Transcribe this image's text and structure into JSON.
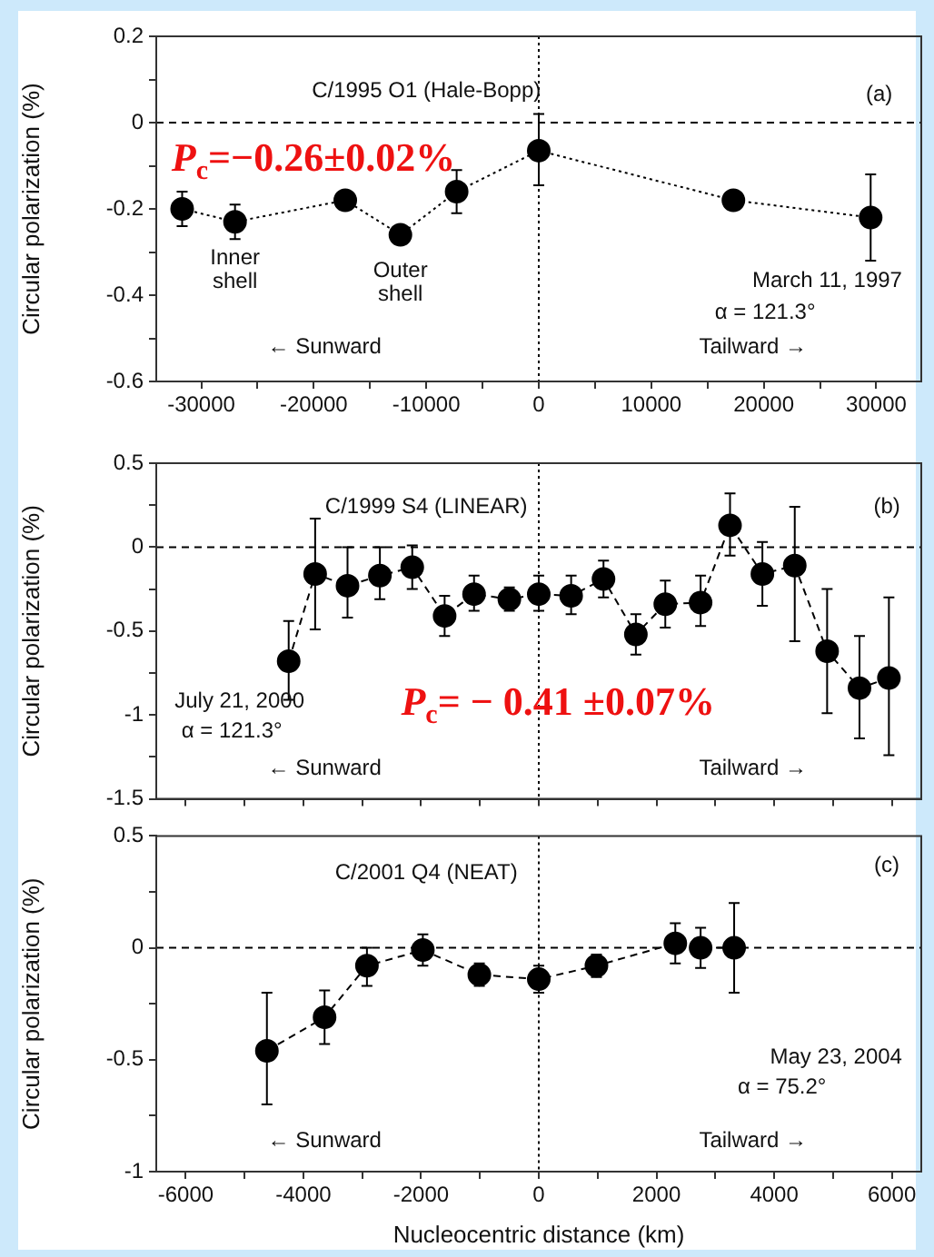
{
  "chart_data": [
    {
      "type": "line",
      "title": "C/1995 O1 (Hale-Bopp)",
      "ylabel": "Circular polarization (%)",
      "x": [
        -31700,
        -27000,
        -17200,
        -12300,
        -7300,
        0,
        17300,
        29500
      ],
      "series": [
        {
          "color": "#000000",
          "values": [
            -0.2,
            -0.23,
            -0.18,
            -0.26,
            -0.16,
            -0.065,
            -0.18,
            -0.22
          ],
          "errors": [
            0.04,
            0.04,
            null,
            null,
            0.05,
            [
              -0.145,
              0.02
            ],
            null,
            0.1
          ]
        }
      ],
      "xlim": [
        -34000,
        34000
      ],
      "xticks": [
        -30000,
        {
          "value": -25000,
          "label": null
        },
        -20000,
        {
          "value": -15000,
          "label": null
        },
        -10000,
        {
          "value": -5000,
          "label": null
        },
        0,
        {
          "value": 5000,
          "label": null
        },
        10000,
        {
          "value": 15000,
          "label": null
        },
        20000,
        {
          "value": 25000,
          "label": null
        },
        30000
      ],
      "ylim": [
        -0.6,
        0.2
      ],
      "yticks": [
        -0.6,
        {
          "value": -0.5,
          "label": null
        },
        -0.4,
        {
          "value": -0.3,
          "label": null
        },
        -0.2,
        {
          "value": -0.1,
          "label": null
        },
        0,
        {
          "value": 0.1,
          "label": null
        },
        0.2
      ],
      "ref_lines": [
        {
          "axis": "y",
          "value": 0,
          "line_style": "dashed"
        },
        {
          "axis": "x",
          "value": 0,
          "line_style": "dotted"
        }
      ],
      "annotations": [
        "(a)",
        "P$_{c}$=−0.26±0.02%",
        {
          "text": "Inner\nshell",
          "x": -27000,
          "y": -0.23
        },
        {
          "text": "Outer\nshell",
          "x": -12300,
          "y": -0.26
        },
        "March 11, 1997",
        "α = 121.3°",
        "← Sunward",
        "Tailward →"
      ],
      "marker": "circle",
      "line_style": "dotted",
      "grid": false
    },
    {
      "type": "line",
      "title": "C/1999 S4 (LINEAR)",
      "ylabel": "Circular polarization (%)",
      "x": [
        -4250,
        -3800,
        -3250,
        -2700,
        -2150,
        -1600,
        -1100,
        -500,
        0,
        550,
        1100,
        1650,
        2150,
        2750,
        3250,
        3800,
        4350,
        4900,
        5450,
        5950
      ],
      "series": [
        {
          "color": "#000000",
          "values": [
            -0.68,
            -0.16,
            -0.23,
            -0.17,
            -0.12,
            -0.41,
            -0.28,
            -0.31,
            -0.28,
            -0.29,
            -0.19,
            -0.52,
            -0.34,
            -0.33,
            0.13,
            -0.16,
            -0.11,
            -0.62,
            -0.84,
            -0.78
          ],
          "errors": [
            [
              -0.91,
              -0.44
            ],
            [
              -0.49,
              0.17
            ],
            [
              -0.42,
              0
            ],
            [
              -0.31,
              0
            ],
            [
              -0.25,
              0.01
            ],
            [
              -0.53,
              -0.29
            ],
            [
              -0.38,
              -0.17
            ],
            [
              -0.38,
              -0.24
            ],
            [
              -0.38,
              -0.17
            ],
            [
              -0.4,
              -0.17
            ],
            [
              -0.3,
              -0.08
            ],
            [
              -0.64,
              -0.4
            ],
            [
              -0.48,
              -0.2
            ],
            [
              -0.47,
              -0.17
            ],
            [
              -0.05,
              0.32
            ],
            [
              -0.35,
              0.03
            ],
            [
              -0.56,
              0.24
            ],
            [
              -0.99,
              -0.25
            ],
            [
              -1.14,
              -0.53
            ],
            [
              -1.24,
              -0.3
            ]
          ]
        }
      ],
      "xlim": [
        -6500,
        6500
      ],
      "xticks": [
        -6000,
        {
          "value": -5000,
          "label": null
        },
        -4000,
        {
          "value": -3000,
          "label": null
        },
        -2000,
        {
          "value": -1000,
          "label": null
        },
        0,
        {
          "value": 1000,
          "label": null
        },
        2000,
        {
          "value": 3000,
          "label": null
        },
        4000,
        {
          "value": 5000,
          "label": null
        },
        6000
      ],
      "ylim": [
        -1.5,
        0.5
      ],
      "yticks": [
        -1.5,
        {
          "value": -1.25,
          "label": null
        },
        -1,
        {
          "value": -0.75,
          "label": null
        },
        -0.5,
        {
          "value": -0.25,
          "label": null
        },
        0,
        {
          "value": 0.25,
          "label": null
        },
        0.5
      ],
      "tick_labels": "y",
      "ref_lines": [
        {
          "axis": "y",
          "value": 0,
          "line_style": "dashed"
        },
        {
          "axis": "x",
          "value": 0,
          "line_style": "dotted"
        }
      ],
      "annotations": [
        "(b)",
        "July 21, 2000",
        "α = 121.3°",
        "P$_{c}$= − 0.41 ±0.07%",
        "← Sunward",
        "Tailward →"
      ],
      "marker": "circle",
      "line_style": "dashed",
      "grid": false
    },
    {
      "type": "line",
      "title": "C/2001 Q4 (NEAT)",
      "xlabel": "Nucleocentric distance (km)",
      "ylabel": "Circular polarization (%)",
      "x": [
        -4620,
        -3640,
        -2920,
        -1970,
        -1010,
        0,
        980,
        2320,
        2750,
        3320
      ],
      "series": [
        {
          "color": "#000000",
          "values": [
            -0.46,
            -0.31,
            -0.08,
            -0.01,
            -0.12,
            -0.14,
            -0.08,
            0.02,
            0,
            0
          ],
          "errors": [
            [
              -0.7,
              -0.2
            ],
            [
              -0.43,
              -0.19
            ],
            [
              -0.17,
              0
            ],
            0.07,
            0.05,
            0.06,
            0.05,
            0.09,
            0.09,
            0.2
          ]
        }
      ],
      "xlim": [
        -6500,
        6500
      ],
      "xticks": [
        -6000,
        {
          "value": -5000,
          "label": null
        },
        -4000,
        {
          "value": -3000,
          "label": null
        },
        -2000,
        {
          "value": -1000,
          "label": null
        },
        0,
        {
          "value": 1000,
          "label": null
        },
        2000,
        {
          "value": 3000,
          "label": null
        },
        4000,
        {
          "value": 5000,
          "label": null
        },
        6000
      ],
      "ylim": [
        -1,
        0.5
      ],
      "yticks": [
        -1,
        {
          "value": -0.75,
          "label": null
        },
        -0.5,
        {
          "value": -0.25,
          "label": null
        },
        0,
        {
          "value": 0.25,
          "label": null
        },
        0.5
      ],
      "ref_lines": [
        {
          "axis": "y",
          "value": 0,
          "line_style": "dashed"
        },
        {
          "axis": "x",
          "value": 0,
          "line_style": "dotted"
        }
      ],
      "annotations": [
        "(c)",
        "May 23, 2004",
        "α = 75.2°",
        "← Sunward",
        "Tailward →"
      ],
      "marker": "circle",
      "line_style": "dashed",
      "grid": false
    }
  ]
}
